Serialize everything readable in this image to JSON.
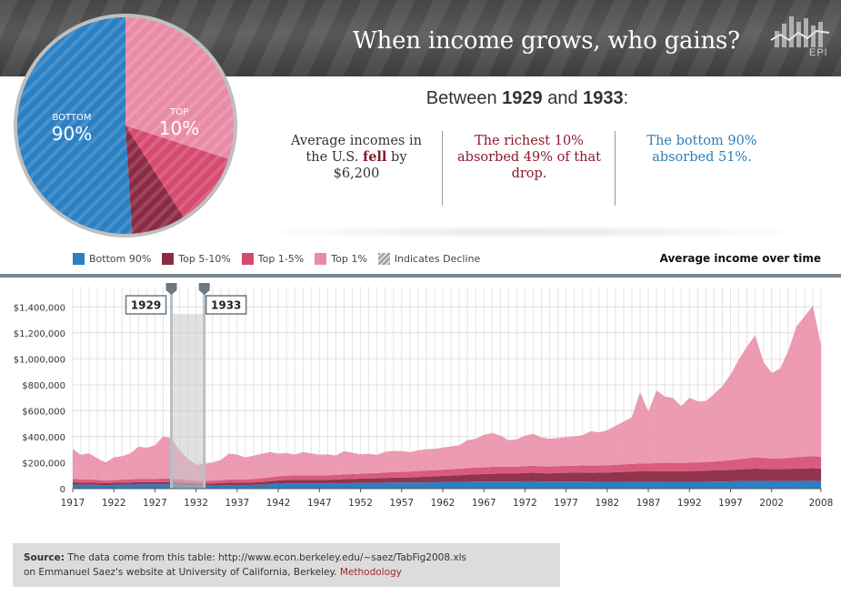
{
  "header": {
    "title": "When income grows, who gains?",
    "logo_text": "EPI"
  },
  "pie": {
    "bottom_label": "BOTTOM",
    "bottom_value": "90%",
    "top_label": "TOP",
    "top_value": "10%",
    "shares": [
      {
        "name": "Bottom 90%",
        "share": 51,
        "color": "#2b7fc3"
      },
      {
        "name": "Top 5-10%",
        "share": 8,
        "color": "#8b2a44"
      },
      {
        "name": "Top 1-5%",
        "share": 11,
        "color": "#d64a6f"
      },
      {
        "name": "Top 1%",
        "share": 30,
        "color": "#e98aa6"
      }
    ]
  },
  "summary": {
    "prefix": "Between",
    "year_start": "1929",
    "connector": "and",
    "year_end": "1933",
    "suffix": ":",
    "fact1_a": "Average incomes in the U.S.",
    "fact1_b": "fell",
    "fact1_c": "by $6,200",
    "fact2": "The richest 10% absorbed 49% of that drop.",
    "fact3": "The bottom 90% absorbed 51%."
  },
  "legend": {
    "items": [
      {
        "label": "Bottom 90%",
        "color": "#2b7fc3"
      },
      {
        "label": "Top 5-10%",
        "color": "#8b2a44"
      },
      {
        "label": "Top 1-5%",
        "color": "#d64a6f"
      },
      {
        "label": "Top 1%",
        "color": "#e98aa6"
      },
      {
        "label": "Indicates Decline",
        "color": "#999999"
      }
    ],
    "heading": "Average income over time"
  },
  "range": {
    "start": "1929",
    "end": "1933"
  },
  "chart_data": {
    "type": "area",
    "x": [
      1917,
      1918,
      1919,
      1920,
      1921,
      1922,
      1923,
      1924,
      1925,
      1926,
      1927,
      1928,
      1929,
      1930,
      1931,
      1932,
      1933,
      1934,
      1935,
      1936,
      1937,
      1938,
      1939,
      1940,
      1941,
      1942,
      1943,
      1944,
      1945,
      1946,
      1947,
      1948,
      1949,
      1950,
      1951,
      1952,
      1953,
      1954,
      1955,
      1956,
      1957,
      1958,
      1959,
      1960,
      1961,
      1962,
      1963,
      1964,
      1965,
      1966,
      1967,
      1968,
      1969,
      1970,
      1971,
      1972,
      1973,
      1974,
      1975,
      1976,
      1977,
      1978,
      1979,
      1980,
      1981,
      1982,
      1983,
      1984,
      1985,
      1986,
      1987,
      1988,
      1989,
      1990,
      1991,
      1992,
      1993,
      1994,
      1995,
      1996,
      1997,
      1998,
      1999,
      2000,
      2001,
      2002,
      2003,
      2004,
      2005,
      2006,
      2007,
      2008
    ],
    "series": [
      {
        "name": "Bottom 90%",
        "values": [
          32000,
          30000,
          30000,
          29000,
          27000,
          29000,
          31000,
          31000,
          32000,
          32000,
          32000,
          33000,
          32500,
          30000,
          27500,
          24000,
          23000,
          24000,
          25000,
          27000,
          28000,
          27000,
          28500,
          30000,
          34000,
          38000,
          41000,
          42000,
          41000,
          40000,
          39000,
          40000,
          40000,
          42000,
          43000,
          44000,
          45000,
          45000,
          46000,
          47000,
          47000,
          47000,
          48000,
          48000,
          49000,
          50000,
          51000,
          52000,
          53000,
          54000,
          54000,
          55000,
          55000,
          54000,
          54000,
          56000,
          57000,
          55000,
          54000,
          55000,
          55000,
          55000,
          55000,
          53000,
          53000,
          52000,
          52000,
          53000,
          53000,
          53000,
          53000,
          53000,
          53000,
          52000,
          51000,
          52000,
          52000,
          53000,
          54000,
          55000,
          56000,
          58000,
          59000,
          60000,
          59000,
          58000,
          58000,
          59000,
          59000,
          60000,
          60000,
          58000
        ]
      },
      {
        "name": "Top 5-10%",
        "values": [
          18000,
          17000,
          17000,
          16000,
          15000,
          16000,
          17000,
          17000,
          18000,
          18000,
          18000,
          19000,
          19000,
          18000,
          17000,
          16000,
          16000,
          17000,
          18000,
          19000,
          19000,
          19000,
          20000,
          21000,
          23000,
          25000,
          26000,
          27000,
          27000,
          28000,
          28000,
          29000,
          30000,
          31000,
          32000,
          33000,
          34000,
          35000,
          37000,
          38000,
          39000,
          40000,
          42000,
          44000,
          46000,
          48000,
          50000,
          52000,
          54000,
          56000,
          58000,
          60000,
          61000,
          62000,
          63000,
          64000,
          66000,
          64000,
          64000,
          66000,
          67000,
          68000,
          69000,
          69000,
          70000,
          72000,
          74000,
          76000,
          78000,
          80000,
          80000,
          81000,
          82000,
          82000,
          82000,
          83000,
          84000,
          85000,
          86000,
          87000,
          88000,
          90000,
          92000,
          94000,
          93000,
          92000,
          92000,
          93000,
          95000,
          96000,
          98000,
          97000
        ]
      },
      {
        "name": "Top 1-5%",
        "values": [
          25000,
          24000,
          24000,
          22000,
          20000,
          21000,
          22000,
          23000,
          24000,
          25000,
          25000,
          26000,
          26000,
          24000,
          22000,
          20000,
          20000,
          21000,
          22000,
          24000,
          25000,
          25000,
          26000,
          28000,
          30000,
          32000,
          33000,
          33000,
          34000,
          34000,
          34000,
          35000,
          35000,
          36000,
          37000,
          38000,
          39000,
          40000,
          41000,
          42000,
          43000,
          44000,
          45000,
          46000,
          47000,
          48000,
          49000,
          50000,
          51000,
          52000,
          52000,
          53000,
          53000,
          52000,
          52000,
          53000,
          54000,
          53000,
          52000,
          53000,
          54000,
          54000,
          55000,
          55000,
          55000,
          56000,
          57000,
          58000,
          59000,
          61000,
          61000,
          63000,
          64000,
          64000,
          64000,
          65000,
          66000,
          67000,
          69000,
          72000,
          75000,
          79000,
          83000,
          87000,
          85000,
          82000,
          83000,
          85000,
          88000,
          91000,
          92000,
          90000
        ]
      },
      {
        "name": "Top 1%",
        "values": [
          230000,
          190000,
          200000,
          165000,
          140000,
          175000,
          180000,
          200000,
          250000,
          240000,
          260000,
          325000,
          310000,
          220000,
          165000,
          125000,
          130000,
          140000,
          155000,
          200000,
          190000,
          170000,
          180000,
          190000,
          195000,
          175000,
          175000,
          160000,
          180000,
          170000,
          160000,
          160000,
          150000,
          180000,
          165000,
          150000,
          150000,
          140000,
          160000,
          163000,
          160000,
          150000,
          160000,
          165000,
          165000,
          170000,
          175000,
          180000,
          215000,
          222000,
          250000,
          260000,
          240000,
          205000,
          210000,
          235000,
          245000,
          222000,
          215000,
          216000,
          220000,
          225000,
          233000,
          265000,
          256000,
          270000,
          300000,
          330000,
          360000,
          550000,
          400000,
          560000,
          510000,
          500000,
          440000,
          500000,
          470000,
          470000,
          520000,
          575000,
          660000,
          768000,
          860000,
          940000,
          740000,
          660000,
          690000,
          820000,
          1006000,
          1080000,
          1160000,
          860000
        ]
      }
    ],
    "yticks": [
      "0",
      "$200,000",
      "$400,000",
      "$600,000",
      "$800,000",
      "$1,000,000",
      "$1,200,000",
      "$1,400,000"
    ],
    "ytick_values": [
      0,
      200000,
      400000,
      600000,
      800000,
      1000000,
      1200000,
      1400000
    ],
    "xticks": [
      "1917",
      "1922",
      "1927",
      "1932",
      "1937",
      "1942",
      "1947",
      "1952",
      "1957",
      "1962",
      "1967",
      "1972",
      "1977",
      "1982",
      "1987",
      "1992",
      "1997",
      "2002",
      "2008"
    ],
    "xtick_values": [
      1917,
      1922,
      1927,
      1932,
      1937,
      1942,
      1947,
      1952,
      1957,
      1962,
      1967,
      1972,
      1977,
      1982,
      1987,
      1992,
      1997,
      2002,
      2008
    ],
    "ylim": [
      0,
      1500000
    ],
    "xlim": [
      1917,
      2008
    ],
    "grid": true,
    "highlight_range": [
      1929,
      1933
    ]
  },
  "source": {
    "label": "Source:",
    "text": "The data come from this table: http://www.econ.berkeley.edu/~saez/TabFig2008.xls",
    "text2": "on Emmanuel Saez's website at University of California, Berkeley.",
    "link": "Methodology"
  }
}
